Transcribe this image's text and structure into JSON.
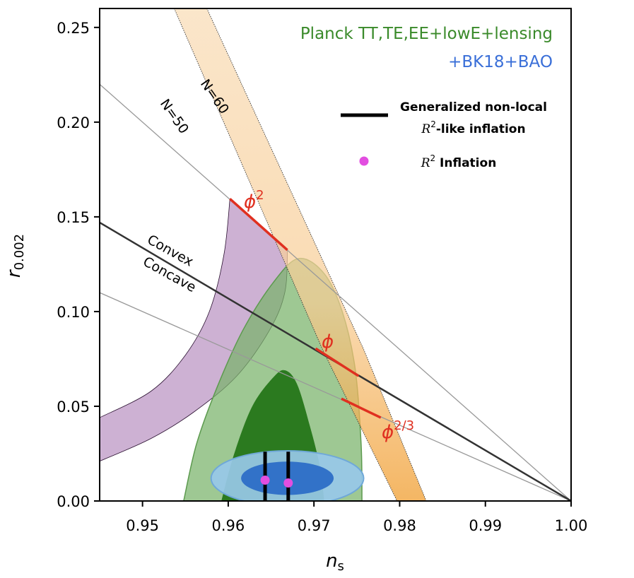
{
  "chart_data": {
    "type": "scatter",
    "xlabel": "n",
    "xlabel_sub": "s",
    "ylabel": "r",
    "ylabel_sub": "0.002",
    "xlim": [
      0.945,
      1.0
    ],
    "ylim": [
      0.0,
      0.26
    ],
    "x_ticks": [
      "0.95",
      "0.96",
      "0.97",
      "0.98",
      "0.99",
      "1.00"
    ],
    "x_tick_values": [
      0.95,
      0.96,
      0.97,
      0.98,
      0.99,
      1.0
    ],
    "y_ticks": [
      "0.00",
      "0.05",
      "0.10",
      "0.15",
      "0.20",
      "0.25"
    ],
    "y_tick_values": [
      0.0,
      0.05,
      0.1,
      0.15,
      0.2,
      0.25
    ],
    "grid": false,
    "legend_position": "top-right",
    "data_set_labels": {
      "line1": "Planck TT,TE,EE+lowE+lensing",
      "line2": "+BK18+BAO",
      "colors": {
        "line1": "#3a8a2a",
        "line2": "#3a6fd8"
      }
    },
    "legend": [
      {
        "label_line1": "Generalized non-local",
        "label_line2_math": "R",
        "label_line2_sup": "2",
        "label_line2_rest": "-like inflation",
        "marker": "line",
        "color": "#000000"
      },
      {
        "label_math": "R",
        "label_sup": "2",
        "label_rest": " Inflation",
        "marker": "dot",
        "color": "#e24ee0"
      }
    ],
    "annotations": {
      "n60": "N=60",
      "n50": "N=50",
      "convex": "Convex",
      "concave": "Concave",
      "phi2_base": "ϕ",
      "phi2_sup": "2",
      "phi1_base": "ϕ",
      "phi23_base": "ϕ",
      "phi23_sup": "2/3"
    },
    "reference_lines": [
      {
        "name": "convex-concave-boundary",
        "points": [
          [
            0.945,
            0.147
          ],
          [
            1.0,
            0.0
          ]
        ],
        "color": "#333333"
      },
      {
        "name": "upper-guide",
        "points": [
          [
            0.945,
            0.22
          ],
          [
            1.0,
            0.0
          ]
        ],
        "color": "#999999"
      },
      {
        "name": "lower-guide",
        "points": [
          [
            0.945,
            0.11
          ],
          [
            1.0,
            0.0
          ]
        ],
        "color": "#999999"
      }
    ],
    "n_efold_band": {
      "color": "#f5a030",
      "n60_edge": [
        [
          0.9575,
          0.26
        ],
        [
          0.9758,
          0.08
        ],
        [
          0.9831,
          0.0
        ]
      ],
      "n50_edge": [
        [
          0.9537,
          0.26
        ],
        [
          0.971,
          0.08
        ],
        [
          0.9797,
          0.0
        ]
      ]
    },
    "monomial_segments": [
      {
        "name": "phi2",
        "points": [
          [
            0.9602,
            0.1595
          ],
          [
            0.9669,
            0.1325
          ]
        ],
        "color": "#e03020"
      },
      {
        "name": "phi",
        "points": [
          [
            0.9702,
            0.0805
          ],
          [
            0.9752,
            0.066
          ]
        ],
        "color": "#e03020"
      },
      {
        "name": "phi23",
        "points": [
          [
            0.9732,
            0.054
          ],
          [
            0.9778,
            0.044
          ]
        ],
        "color": "#e03020"
      }
    ],
    "purple_region": {
      "color": "#9c63a8",
      "upper_boundary": [
        [
          0.945,
          0.044
        ],
        [
          0.951,
          0.058
        ],
        [
          0.955,
          0.077
        ],
        [
          0.9578,
          0.1
        ],
        [
          0.9595,
          0.13
        ],
        [
          0.9602,
          0.1595
        ]
      ],
      "right_boundary": [
        [
          0.9602,
          0.1595
        ],
        [
          0.9669,
          0.1325
        ]
      ],
      "lower_boundary": [
        [
          0.9669,
          0.1325
        ],
        [
          0.9666,
          0.11
        ],
        [
          0.9648,
          0.09
        ],
        [
          0.961,
          0.066
        ],
        [
          0.956,
          0.047
        ],
        [
          0.951,
          0.033
        ],
        [
          0.945,
          0.021
        ]
      ]
    },
    "planck_contours": {
      "outer_95": {
        "color": "#78b36a",
        "points": [
          [
            0.9548,
            0.0
          ],
          [
            0.9563,
            0.03
          ],
          [
            0.9587,
            0.06
          ],
          [
            0.9617,
            0.09
          ],
          [
            0.9652,
            0.115
          ],
          [
            0.9682,
            0.128
          ],
          [
            0.9712,
            0.12
          ],
          [
            0.9733,
            0.1
          ],
          [
            0.9748,
            0.07
          ],
          [
            0.9755,
            0.03
          ],
          [
            0.9756,
            0.0
          ]
        ]
      },
      "inner_68": {
        "color": "#2b7a1f",
        "points": [
          [
            0.9592,
            0.0
          ],
          [
            0.9607,
            0.025
          ],
          [
            0.9628,
            0.05
          ],
          [
            0.9652,
            0.065
          ],
          [
            0.9666,
            0.069
          ],
          [
            0.968,
            0.062
          ],
          [
            0.9695,
            0.04
          ],
          [
            0.9707,
            0.018
          ],
          [
            0.9712,
            0.0
          ]
        ]
      }
    },
    "bk_contours": {
      "outer_95": {
        "color": "#98c8e8",
        "center": [
          0.9669,
          0.012
        ],
        "half_width": 0.0089,
        "half_height": 0.0145
      },
      "inner_68": {
        "color": "#3272c8",
        "center": [
          0.9669,
          0.012
        ],
        "half_width": 0.0054,
        "half_height": 0.0088
      }
    },
    "series": [
      {
        "name": "Generalized non-local R2-like inflation",
        "segments": [
          [
            [
              0.9643,
              0.0
            ],
            [
              0.9643,
              0.026
            ]
          ],
          [
            [
              0.967,
              0.0
            ],
            [
              0.967,
              0.026
            ]
          ]
        ],
        "color": "#000000"
      },
      {
        "name": "R2 Inflation",
        "x": [
          0.9643,
          0.967
        ],
        "y": [
          0.011,
          0.0095
        ],
        "color": "#e24ee0"
      }
    ]
  }
}
